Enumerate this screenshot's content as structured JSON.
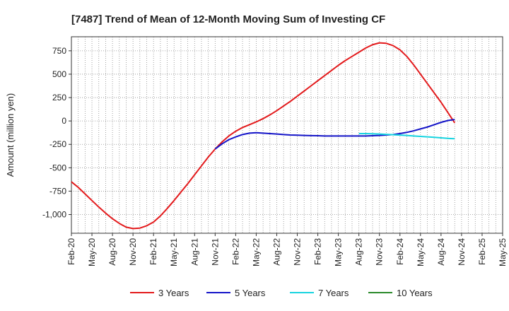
{
  "chart_data": {
    "type": "line",
    "title": "[7487]  Trend of Mean of 12-Month Moving Sum of Investing CF",
    "xlabel": "",
    "ylabel": "Amount (million yen)",
    "ylim": [
      -1200,
      900
    ],
    "yticks": [
      750,
      500,
      250,
      0,
      -250,
      -500,
      -750,
      -1000
    ],
    "ytick_labels": [
      "750",
      "500",
      "250",
      "0",
      "-250",
      "-500",
      "-750",
      "-1,000"
    ],
    "xticks": [
      "Feb-20",
      "May-20",
      "Aug-20",
      "Nov-20",
      "Feb-21",
      "May-21",
      "Aug-21",
      "Nov-21",
      "Feb-22",
      "May-22",
      "Aug-22",
      "Nov-22",
      "Feb-23",
      "May-23",
      "Aug-23",
      "Nov-23",
      "Feb-24",
      "May-24",
      "Aug-24",
      "Nov-24",
      "Feb-25",
      "May-25"
    ],
    "grid": true,
    "legend": "bottom",
    "series": [
      {
        "name": "3 Years",
        "color": "#e31a1c",
        "points": [
          [
            0,
            -650
          ],
          [
            1,
            -710
          ],
          [
            2,
            -780
          ],
          [
            3,
            -850
          ],
          [
            4,
            -920
          ],
          [
            5,
            -985
          ],
          [
            6,
            -1045
          ],
          [
            7,
            -1095
          ],
          [
            8,
            -1135
          ],
          [
            9,
            -1150
          ],
          [
            10,
            -1145
          ],
          [
            11,
            -1120
          ],
          [
            12,
            -1080
          ],
          [
            13,
            -1015
          ],
          [
            14,
            -935
          ],
          [
            15,
            -850
          ],
          [
            16,
            -760
          ],
          [
            17,
            -670
          ],
          [
            18,
            -575
          ],
          [
            19,
            -480
          ],
          [
            20,
            -385
          ],
          [
            21,
            -300
          ],
          [
            22,
            -225
          ],
          [
            23,
            -160
          ],
          [
            24,
            -110
          ],
          [
            25,
            -70
          ],
          [
            26,
            -40
          ],
          [
            27,
            -10
          ],
          [
            28,
            25
          ],
          [
            29,
            65
          ],
          [
            30,
            110
          ],
          [
            31,
            160
          ],
          [
            32,
            210
          ],
          [
            33,
            265
          ],
          [
            34,
            320
          ],
          [
            35,
            375
          ],
          [
            36,
            430
          ],
          [
            37,
            485
          ],
          [
            38,
            540
          ],
          [
            39,
            595
          ],
          [
            40,
            645
          ],
          [
            41,
            690
          ],
          [
            42,
            735
          ],
          [
            43,
            780
          ],
          [
            44,
            815
          ],
          [
            45,
            835
          ],
          [
            46,
            830
          ],
          [
            47,
            805
          ],
          [
            48,
            760
          ],
          [
            49,
            690
          ],
          [
            50,
            600
          ],
          [
            51,
            500
          ],
          [
            52,
            400
          ],
          [
            53,
            300
          ],
          [
            54,
            200
          ],
          [
            55,
            90
          ],
          [
            56,
            -20
          ]
        ]
      },
      {
        "name": "5 Years",
        "color": "#1414c8",
        "points": [
          [
            21,
            -300
          ],
          [
            22,
            -245
          ],
          [
            23,
            -200
          ],
          [
            24,
            -170
          ],
          [
            25,
            -145
          ],
          [
            26,
            -130
          ],
          [
            27,
            -125
          ],
          [
            28,
            -130
          ],
          [
            29,
            -135
          ],
          [
            30,
            -140
          ],
          [
            31,
            -145
          ],
          [
            32,
            -150
          ],
          [
            33,
            -152
          ],
          [
            34,
            -155
          ],
          [
            35,
            -157
          ],
          [
            36,
            -158
          ],
          [
            37,
            -160
          ],
          [
            38,
            -160
          ],
          [
            39,
            -160
          ],
          [
            40,
            -160
          ],
          [
            41,
            -160
          ],
          [
            42,
            -160
          ],
          [
            43,
            -160
          ],
          [
            44,
            -158
          ],
          [
            45,
            -155
          ],
          [
            46,
            -150
          ],
          [
            47,
            -145
          ],
          [
            48,
            -135
          ],
          [
            49,
            -122
          ],
          [
            50,
            -105
          ],
          [
            51,
            -85
          ],
          [
            52,
            -65
          ],
          [
            53,
            -40
          ],
          [
            54,
            -15
          ],
          [
            55,
            5
          ],
          [
            56,
            15
          ]
        ]
      },
      {
        "name": "7 Years",
        "color": "#17d4e0",
        "points": [
          [
            42,
            -135
          ],
          [
            43,
            -135
          ],
          [
            44,
            -137
          ],
          [
            45,
            -140
          ],
          [
            46,
            -143
          ],
          [
            47,
            -147
          ],
          [
            48,
            -151
          ],
          [
            49,
            -155
          ],
          [
            50,
            -160
          ],
          [
            51,
            -165
          ],
          [
            52,
            -170
          ],
          [
            53,
            -175
          ],
          [
            54,
            -180
          ],
          [
            55,
            -186
          ],
          [
            56,
            -190
          ]
        ]
      },
      {
        "name": "10 Years",
        "color": "#2a8a2a",
        "points": []
      }
    ]
  }
}
